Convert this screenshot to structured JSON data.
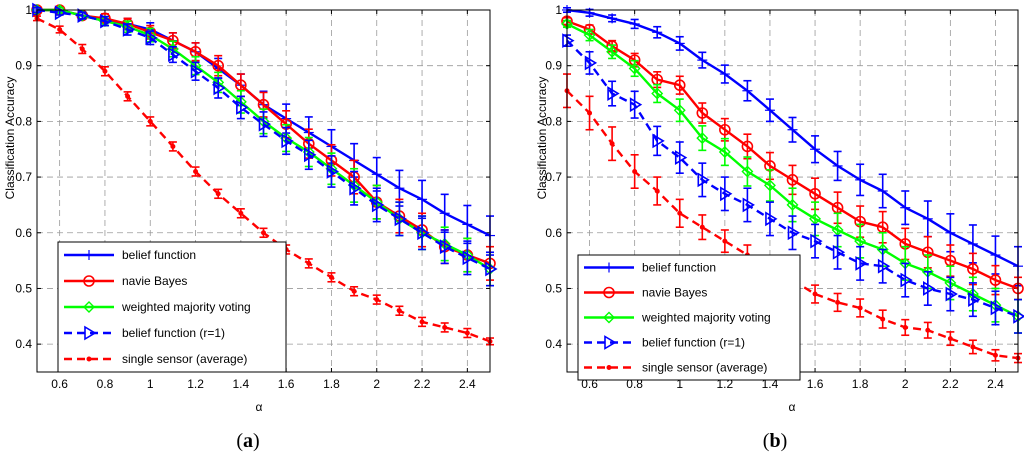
{
  "chart_data": [
    {
      "type": "line",
      "panel": "a",
      "panel_label_prefix": "(",
      "panel_label_letter": "a",
      "panel_label_suffix": ")",
      "xlabel": "α",
      "ylabel": "Classification Accuracy",
      "xlim": [
        0.5,
        2.5
      ],
      "ylim": [
        0.35,
        1.0
      ],
      "xticks": [
        0.6,
        0.8,
        1,
        1.2,
        1.4,
        1.6,
        1.8,
        2,
        2.2,
        2.4
      ],
      "yticks": [
        0.4,
        0.5,
        0.6,
        0.7,
        0.8,
        0.9,
        1
      ],
      "grid": true,
      "legend_position": "lower-left",
      "x": [
        0.5,
        0.6,
        0.7,
        0.8,
        0.9,
        1.0,
        1.1,
        1.2,
        1.3,
        1.4,
        1.5,
        1.6,
        1.7,
        1.8,
        1.9,
        2.0,
        2.1,
        2.2,
        2.3,
        2.4,
        2.5
      ],
      "series": [
        {
          "name": "belief function",
          "color": "#0000ff",
          "style": "solid",
          "marker": "plus",
          "values": [
            1.0,
            1.0,
            0.99,
            0.98,
            0.975,
            0.965,
            0.945,
            0.925,
            0.895,
            0.865,
            0.83,
            0.805,
            0.78,
            0.755,
            0.73,
            0.705,
            0.68,
            0.66,
            0.635,
            0.615,
            0.595
          ],
          "err": [
            0.004,
            0.004,
            0.006,
            0.008,
            0.01,
            0.012,
            0.014,
            0.016,
            0.018,
            0.02,
            0.024,
            0.026,
            0.028,
            0.03,
            0.03,
            0.03,
            0.032,
            0.034,
            0.034,
            0.034,
            0.035
          ]
        },
        {
          "name": "navie Bayes",
          "color": "#ff0000",
          "style": "solid",
          "marker": "circle",
          "values": [
            1.0,
            1.0,
            0.99,
            0.985,
            0.975,
            0.96,
            0.945,
            0.925,
            0.9,
            0.865,
            0.83,
            0.795,
            0.76,
            0.73,
            0.7,
            0.655,
            0.63,
            0.605,
            0.575,
            0.56,
            0.545
          ],
          "err": [
            0.004,
            0.004,
            0.006,
            0.008,
            0.01,
            0.012,
            0.014,
            0.016,
            0.018,
            0.02,
            0.022,
            0.024,
            0.026,
            0.028,
            0.03,
            0.03,
            0.03,
            0.03,
            0.03,
            0.03,
            0.03
          ]
        },
        {
          "name": "weighted majority voting",
          "color": "#00ff00",
          "style": "solid",
          "marker": "diamond",
          "values": [
            1.0,
            1.0,
            0.99,
            0.98,
            0.97,
            0.955,
            0.93,
            0.9,
            0.87,
            0.835,
            0.8,
            0.77,
            0.745,
            0.715,
            0.685,
            0.655,
            0.625,
            0.6,
            0.58,
            0.56,
            0.535
          ],
          "err": [
            0.004,
            0.004,
            0.006,
            0.008,
            0.01,
            0.012,
            0.014,
            0.016,
            0.018,
            0.02,
            0.022,
            0.024,
            0.026,
            0.028,
            0.03,
            0.03,
            0.03,
            0.03,
            0.03,
            0.03,
            0.03
          ]
        },
        {
          "name": "belief function (r=1)",
          "color": "#0000ff",
          "style": "dashed",
          "marker": "triangle-right",
          "values": [
            1.0,
            0.995,
            0.99,
            0.98,
            0.965,
            0.95,
            0.92,
            0.89,
            0.86,
            0.825,
            0.795,
            0.765,
            0.74,
            0.71,
            0.68,
            0.65,
            0.625,
            0.6,
            0.575,
            0.555,
            0.535
          ],
          "err": [
            0.004,
            0.004,
            0.006,
            0.008,
            0.01,
            0.012,
            0.014,
            0.016,
            0.018,
            0.02,
            0.022,
            0.024,
            0.026,
            0.028,
            0.03,
            0.03,
            0.03,
            0.03,
            0.03,
            0.03,
            0.03
          ]
        },
        {
          "name": "single sensor (average)",
          "color": "#ff0000",
          "style": "dashed",
          "marker": "dot",
          "values": [
            0.985,
            0.965,
            0.93,
            0.89,
            0.845,
            0.8,
            0.755,
            0.71,
            0.67,
            0.635,
            0.6,
            0.57,
            0.545,
            0.52,
            0.495,
            0.48,
            0.46,
            0.44,
            0.43,
            0.42,
            0.405
          ],
          "err": [
            0.004,
            0.006,
            0.008,
            0.008,
            0.008,
            0.008,
            0.008,
            0.008,
            0.008,
            0.008,
            0.008,
            0.008,
            0.008,
            0.008,
            0.008,
            0.008,
            0.008,
            0.008,
            0.008,
            0.008,
            0.006
          ]
        }
      ]
    },
    {
      "type": "line",
      "panel": "b",
      "panel_label_prefix": "(",
      "panel_label_letter": "b",
      "panel_label_suffix": ")",
      "xlabel": "α",
      "ylabel": "Classification Accuracy",
      "xlim": [
        0.5,
        2.5
      ],
      "ylim": [
        0.35,
        1.0
      ],
      "xticks": [
        0.6,
        0.8,
        1,
        1.2,
        1.4,
        1.6,
        1.8,
        2,
        2.2,
        2.4
      ],
      "yticks": [
        0.4,
        0.5,
        0.6,
        0.7,
        0.8,
        0.9,
        1
      ],
      "grid": true,
      "legend_position": "lower-left",
      "x": [
        0.5,
        0.6,
        0.7,
        0.8,
        0.9,
        1.0,
        1.1,
        1.2,
        1.3,
        1.4,
        1.5,
        1.6,
        1.7,
        1.8,
        1.9,
        2.0,
        2.1,
        2.2,
        2.3,
        2.4,
        2.5
      ],
      "series": [
        {
          "name": "belief function",
          "color": "#0000ff",
          "style": "solid",
          "marker": "plus",
          "values": [
            1.0,
            0.995,
            0.985,
            0.975,
            0.96,
            0.94,
            0.91,
            0.885,
            0.855,
            0.82,
            0.785,
            0.75,
            0.72,
            0.695,
            0.675,
            0.645,
            0.625,
            0.6,
            0.58,
            0.56,
            0.54
          ],
          "err": [
            0.004,
            0.006,
            0.006,
            0.008,
            0.01,
            0.012,
            0.014,
            0.016,
            0.018,
            0.02,
            0.022,
            0.024,
            0.026,
            0.028,
            0.03,
            0.03,
            0.032,
            0.034,
            0.034,
            0.034,
            0.035
          ]
        },
        {
          "name": "navie Bayes",
          "color": "#ff0000",
          "style": "solid",
          "marker": "circle",
          "values": [
            0.98,
            0.965,
            0.935,
            0.91,
            0.875,
            0.865,
            0.815,
            0.785,
            0.755,
            0.72,
            0.695,
            0.67,
            0.645,
            0.62,
            0.61,
            0.58,
            0.565,
            0.55,
            0.535,
            0.515,
            0.5
          ],
          "err": [
            0.006,
            0.008,
            0.01,
            0.012,
            0.014,
            0.016,
            0.018,
            0.02,
            0.022,
            0.024,
            0.026,
            0.028,
            0.028,
            0.028,
            0.028,
            0.028,
            0.028,
            0.028,
            0.028,
            0.026,
            0.02
          ]
        },
        {
          "name": "weighted majority voting",
          "color": "#00ff00",
          "style": "solid",
          "marker": "diamond",
          "values": [
            0.975,
            0.955,
            0.925,
            0.895,
            0.85,
            0.82,
            0.77,
            0.745,
            0.71,
            0.685,
            0.65,
            0.625,
            0.605,
            0.585,
            0.57,
            0.545,
            0.53,
            0.51,
            0.49,
            0.47,
            0.45
          ],
          "err": [
            0.006,
            0.01,
            0.012,
            0.014,
            0.016,
            0.02,
            0.022,
            0.024,
            0.026,
            0.028,
            0.03,
            0.03,
            0.03,
            0.03,
            0.03,
            0.03,
            0.03,
            0.03,
            0.03,
            0.03,
            0.03
          ]
        },
        {
          "name": "belief function (r=1)",
          "color": "#0000ff",
          "style": "dashed",
          "marker": "triangle-right",
          "values": [
            0.945,
            0.905,
            0.85,
            0.83,
            0.765,
            0.735,
            0.695,
            0.67,
            0.65,
            0.625,
            0.6,
            0.585,
            0.565,
            0.545,
            0.54,
            0.515,
            0.5,
            0.49,
            0.48,
            0.465,
            0.45
          ],
          "err": [
            0.01,
            0.02,
            0.022,
            0.024,
            0.026,
            0.028,
            0.03,
            0.03,
            0.03,
            0.03,
            0.03,
            0.03,
            0.03,
            0.03,
            0.03,
            0.03,
            0.03,
            0.03,
            0.03,
            0.03,
            0.03
          ]
        },
        {
          "name": "single sensor (average)",
          "color": "#ff0000",
          "style": "dashed",
          "marker": "dot",
          "values": [
            0.855,
            0.815,
            0.76,
            0.71,
            0.675,
            0.635,
            0.61,
            0.585,
            0.56,
            0.54,
            0.515,
            0.49,
            0.475,
            0.465,
            0.445,
            0.43,
            0.425,
            0.41,
            0.395,
            0.38,
            0.375
          ],
          "err": [
            0.03,
            0.03,
            0.03,
            0.03,
            0.025,
            0.025,
            0.022,
            0.02,
            0.018,
            0.018,
            0.018,
            0.016,
            0.016,
            0.016,
            0.016,
            0.014,
            0.014,
            0.012,
            0.012,
            0.01,
            0.008
          ]
        }
      ]
    }
  ]
}
